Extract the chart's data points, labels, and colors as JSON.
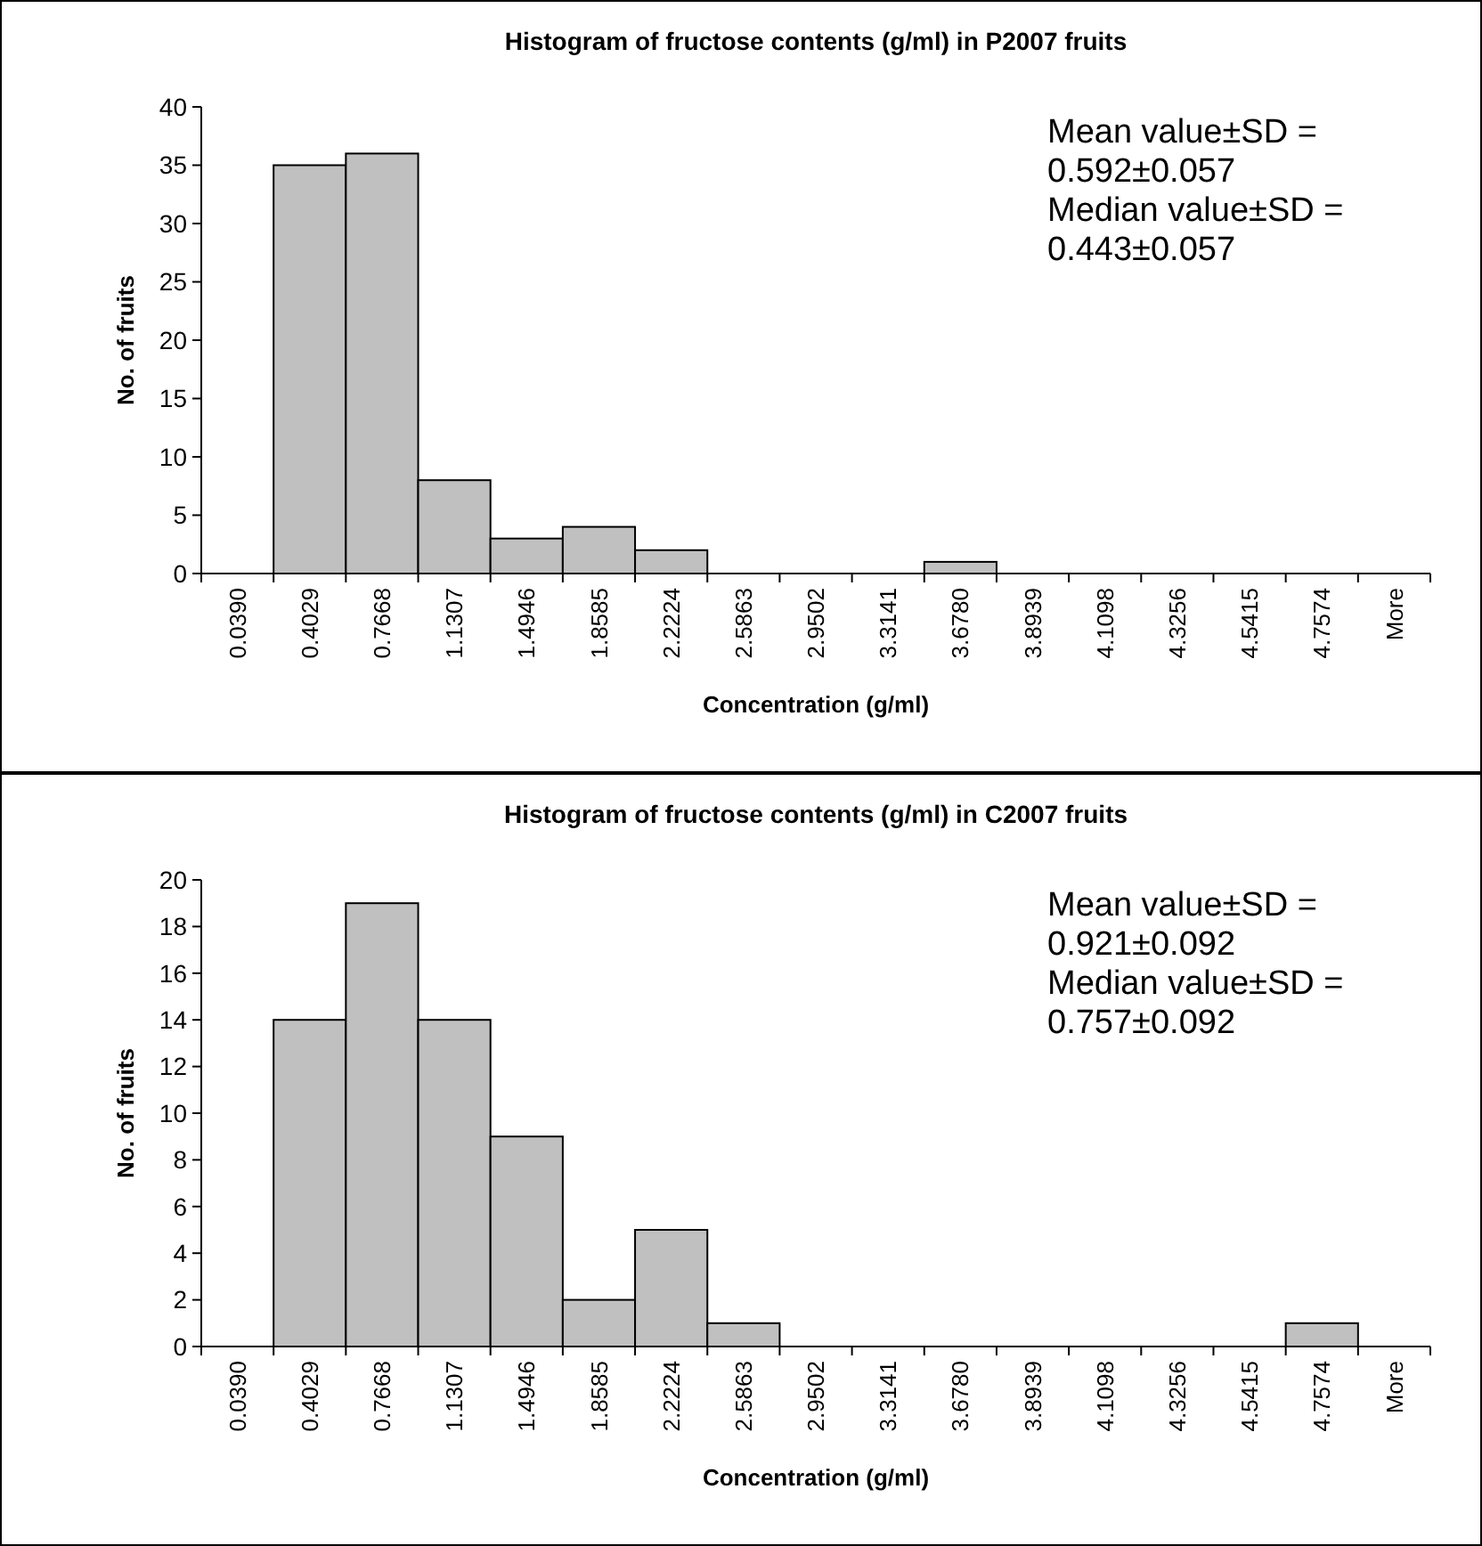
{
  "chart_data": [
    {
      "type": "bar",
      "title": "Histogram of fructose contents (g/ml) in P2007 fruits",
      "xlabel": "Concentration  (g/ml)",
      "ylabel": "No. of fruits",
      "categories": [
        "0.0390",
        "0.4029",
        "0.7668",
        "1.1307",
        "1.4946",
        "1.8585",
        "2.2224",
        "2.5863",
        "2.9502",
        "3.3141",
        "3.6780",
        "3.8939",
        "4.1098",
        "4.3256",
        "4.5415",
        "4.7574",
        "More"
      ],
      "values": [
        0,
        35,
        36,
        8,
        3,
        4,
        2,
        0,
        0,
        0,
        1,
        0,
        0,
        0,
        0,
        0,
        0
      ],
      "color": "#c0c0c0",
      "ylim": [
        0,
        40
      ],
      "yticks": [
        0,
        5,
        10,
        15,
        20,
        25,
        30,
        35,
        40
      ],
      "grid": false,
      "annotations": [
        "Mean value±SD =",
        "0.592±0.057",
        "Median value±SD =",
        "0.443±0.057"
      ]
    },
    {
      "type": "bar",
      "title": "Histogram of fructose contents (g/ml) in C2007 fruits",
      "xlabel": "Concentration  (g/ml)",
      "ylabel": "No. of fruits",
      "categories": [
        "0.0390",
        "0.4029",
        "0.7668",
        "1.1307",
        "1.4946",
        "1.8585",
        "2.2224",
        "2.5863",
        "2.9502",
        "3.3141",
        "3.6780",
        "3.8939",
        "4.1098",
        "4.3256",
        "4.5415",
        "4.7574",
        "More"
      ],
      "values": [
        0,
        14,
        19,
        14,
        9,
        2,
        5,
        1,
        0,
        0,
        0,
        0,
        0,
        0,
        0,
        1,
        0
      ],
      "color": "#c0c0c0",
      "ylim": [
        0,
        20
      ],
      "yticks": [
        0,
        2,
        4,
        6,
        8,
        10,
        12,
        14,
        16,
        18,
        20
      ],
      "grid": false,
      "annotations": [
        "Mean value±SD =",
        "0.921±0.092",
        "Median value±SD =",
        "0.757±0.092"
      ]
    }
  ]
}
